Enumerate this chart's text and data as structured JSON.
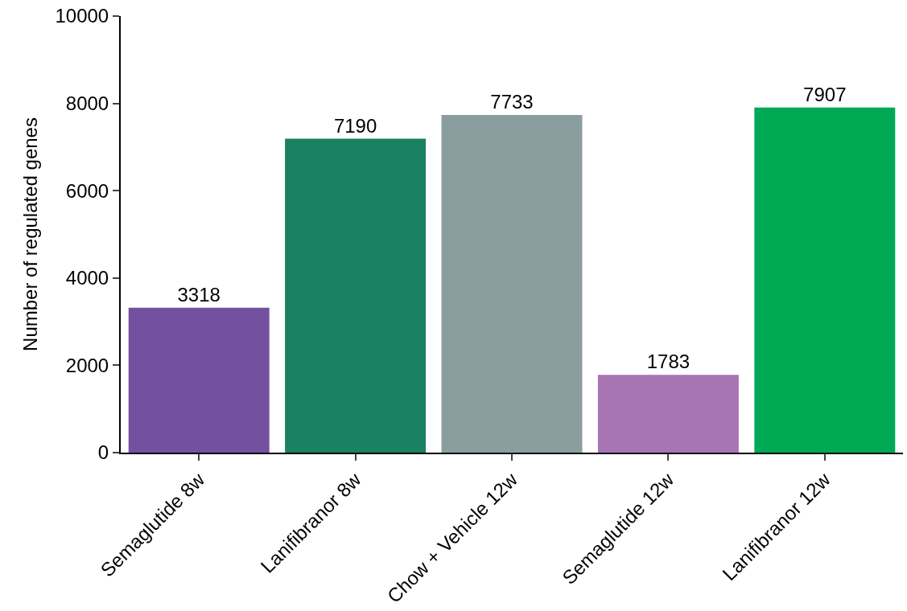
{
  "chart_data": {
    "type": "bar",
    "ylabel": "Number of regulated genes",
    "categories": [
      "Semaglutide 8w",
      "Lanifibranor 8w",
      "Chow + Vehicle 12w",
      "Semaglutide 12w",
      "Lanifibranor 12w"
    ],
    "values": [
      3318,
      7190,
      7733,
      1783,
      7907
    ],
    "colors": [
      "#7451a0",
      "#1c8062",
      "#8a9ea0",
      "#a875b3",
      "#00aa55"
    ],
    "ylim": [
      0,
      10000
    ],
    "yticks": [
      0,
      2000,
      4000,
      6000,
      8000,
      10000
    ],
    "data_labels": true
  }
}
